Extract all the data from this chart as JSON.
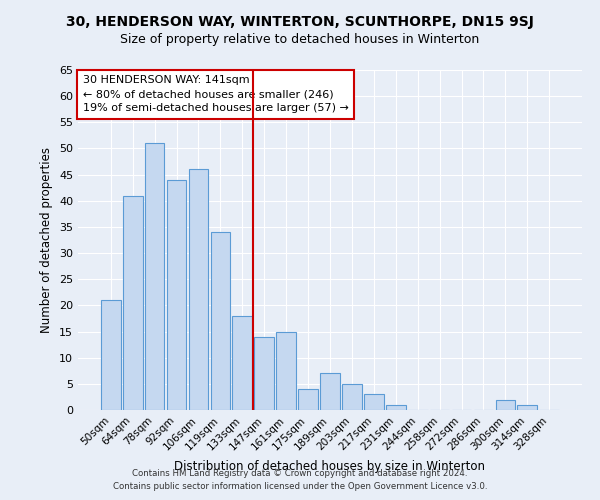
{
  "title": "30, HENDERSON WAY, WINTERTON, SCUNTHORPE, DN15 9SJ",
  "subtitle": "Size of property relative to detached houses in Winterton",
  "xlabel": "Distribution of detached houses by size in Winterton",
  "ylabel": "Number of detached properties",
  "bin_labels": [
    "50sqm",
    "64sqm",
    "78sqm",
    "92sqm",
    "106sqm",
    "119sqm",
    "133sqm",
    "147sqm",
    "161sqm",
    "175sqm",
    "189sqm",
    "203sqm",
    "217sqm",
    "231sqm",
    "244sqm",
    "258sqm",
    "272sqm",
    "286sqm",
    "300sqm",
    "314sqm",
    "328sqm"
  ],
  "bar_heights": [
    21,
    41,
    51,
    44,
    46,
    34,
    18,
    14,
    15,
    4,
    7,
    5,
    3,
    1,
    0,
    0,
    0,
    0,
    2,
    1,
    0
  ],
  "bar_color": "#c5d8f0",
  "bar_edge_color": "#5b9bd5",
  "vline_x_idx": 7,
  "vline_color": "#cc0000",
  "ylim": [
    0,
    65
  ],
  "yticks": [
    0,
    5,
    10,
    15,
    20,
    25,
    30,
    35,
    40,
    45,
    50,
    55,
    60,
    65
  ],
  "annotation_title": "30 HENDERSON WAY: 141sqm",
  "annotation_line1": "← 80% of detached houses are smaller (246)",
  "annotation_line2": "19% of semi-detached houses are larger (57) →",
  "annotation_box_color": "#ffffff",
  "annotation_box_edge": "#cc0000",
  "footnote1": "Contains HM Land Registry data © Crown copyright and database right 2024.",
  "footnote2": "Contains public sector information licensed under the Open Government Licence v3.0.",
  "background_color": "#e8eef7",
  "grid_color": "#ffffff",
  "title_fontsize": 10,
  "subtitle_fontsize": 9
}
